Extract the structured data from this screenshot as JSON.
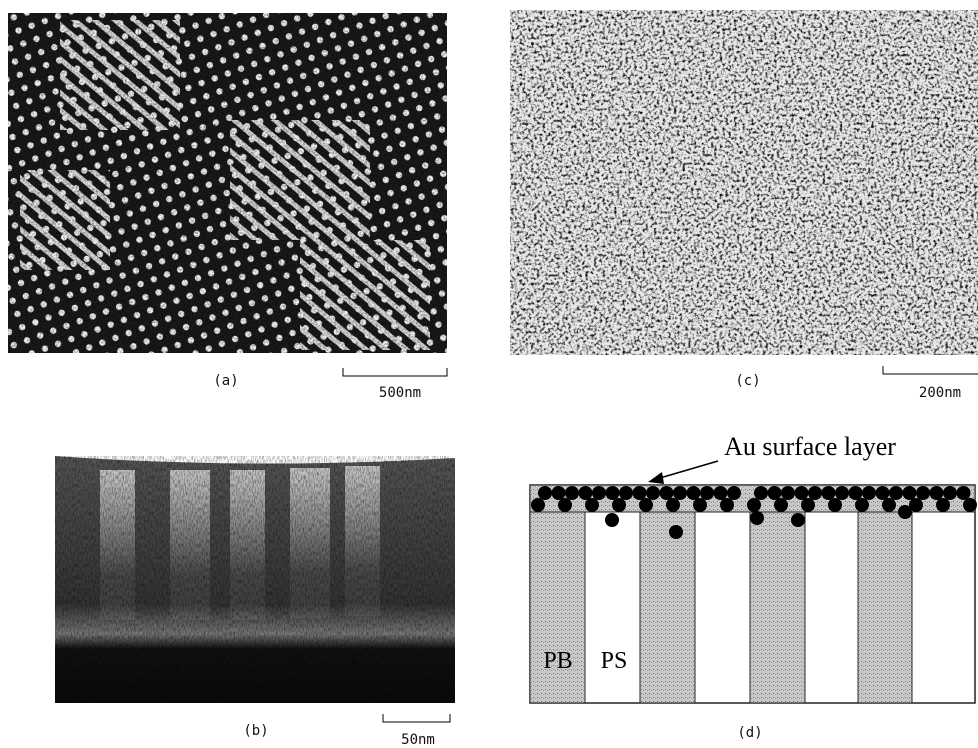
{
  "panels": [
    {
      "label": "(a)",
      "scale": "500nm"
    },
    {
      "label": "(b)",
      "scale": "50nm"
    },
    {
      "label": "(c)",
      "scale": "200nm"
    },
    {
      "label": "(d)"
    }
  ],
  "schematic": {
    "annotation": "Au surface layer",
    "labels": [
      "PB",
      "PS"
    ]
  }
}
